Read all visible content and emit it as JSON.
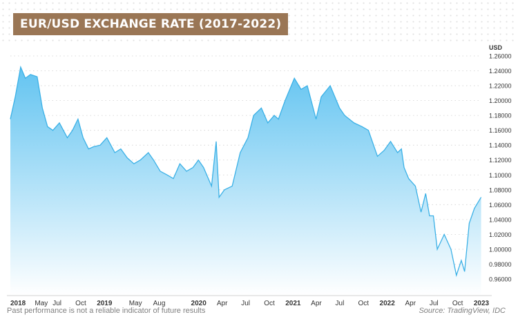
{
  "title": "EUR/USD EXCHANGE RATE (2017-2022)",
  "footer": {
    "disclaimer": "Past performance is not a reliable indicator of future results",
    "source": "Source: TradingView, IDC"
  },
  "colors": {
    "title_bg": "#9a7655",
    "line": "#3ab0e6",
    "fill_top": "#5bc1f0",
    "fill_bottom": "#ffffff",
    "grid": "#cfcfcf"
  },
  "chart_data": {
    "type": "area",
    "title": "EUR/USD EXCHANGE RATE (2017-2022)",
    "ylabel": "USD",
    "ylim": [
      0.95,
      1.27
    ],
    "y_ticks": [
      "1.26000",
      "1.24000",
      "1.22000",
      "1.20000",
      "1.18000",
      "1.16000",
      "1.14000",
      "1.12000",
      "1.10000",
      "1.08000",
      "1.06000",
      "1.04000",
      "1.02000",
      "1.00000",
      "0.98000",
      "0.96000"
    ],
    "x_ticks": [
      "2018",
      "May",
      "Jul",
      "Oct",
      "2019",
      "May",
      "Aug",
      "2020",
      "Apr",
      "Jul",
      "Oct",
      "2021",
      "Apr",
      "Jul",
      "Oct",
      "2022",
      "Apr",
      "Jul",
      "Oct",
      "2023"
    ],
    "x_tick_dates": [
      "2018-01-01",
      "2018-05-01",
      "2018-07-01",
      "2018-10-01",
      "2019-01-01",
      "2019-05-01",
      "2019-08-01",
      "2020-01-01",
      "2020-04-01",
      "2020-07-01",
      "2020-10-01",
      "2021-01-01",
      "2021-04-01",
      "2021-07-01",
      "2021-10-01",
      "2022-01-01",
      "2022-04-01",
      "2022-07-01",
      "2022-10-01",
      "2023-01-01"
    ],
    "grid": true,
    "series": [
      {
        "x": [
          "2018-01-01",
          "2018-01-20",
          "2018-02-10",
          "2018-02-28",
          "2018-03-20",
          "2018-04-15",
          "2018-05-05",
          "2018-05-25",
          "2018-06-15",
          "2018-07-10",
          "2018-08-10",
          "2018-08-30",
          "2018-09-20",
          "2018-10-10",
          "2018-10-31",
          "2018-11-20",
          "2018-12-15",
          "2019-01-10",
          "2019-02-10",
          "2019-03-05",
          "2019-03-30",
          "2019-04-25",
          "2019-05-20",
          "2019-06-20",
          "2019-07-10",
          "2019-08-05",
          "2019-09-01",
          "2019-09-25",
          "2019-10-20",
          "2019-11-15",
          "2019-12-10",
          "2019-12-31",
          "2020-01-20",
          "2020-02-20",
          "2020-03-09",
          "2020-03-20",
          "2020-04-10",
          "2020-05-10",
          "2020-06-10",
          "2020-07-10",
          "2020-08-01",
          "2020-08-31",
          "2020-09-25",
          "2020-10-20",
          "2020-11-05",
          "2020-12-01",
          "2021-01-06",
          "2021-02-01",
          "2021-02-25",
          "2021-03-31",
          "2021-04-20",
          "2021-05-25",
          "2021-06-30",
          "2021-07-20",
          "2021-08-25",
          "2021-09-25",
          "2021-10-20",
          "2021-11-24",
          "2021-12-20",
          "2022-01-14",
          "2022-02-10",
          "2022-02-25",
          "2022-03-07",
          "2022-03-25",
          "2022-04-20",
          "2022-05-12",
          "2022-05-30",
          "2022-06-14",
          "2022-06-29",
          "2022-07-14",
          "2022-08-10",
          "2022-09-05",
          "2022-09-26",
          "2022-10-15",
          "2022-10-28",
          "2022-11-15",
          "2022-12-05",
          "2022-12-31"
        ],
        "y": [
          1.175,
          1.205,
          1.245,
          1.23,
          1.235,
          1.232,
          1.19,
          1.165,
          1.16,
          1.17,
          1.15,
          1.16,
          1.175,
          1.15,
          1.135,
          1.138,
          1.14,
          1.15,
          1.13,
          1.135,
          1.123,
          1.115,
          1.12,
          1.13,
          1.12,
          1.105,
          1.1,
          1.095,
          1.115,
          1.105,
          1.11,
          1.12,
          1.11,
          1.085,
          1.145,
          1.07,
          1.08,
          1.085,
          1.13,
          1.15,
          1.18,
          1.19,
          1.17,
          1.18,
          1.175,
          1.2,
          1.23,
          1.215,
          1.22,
          1.175,
          1.205,
          1.22,
          1.19,
          1.18,
          1.17,
          1.165,
          1.16,
          1.125,
          1.133,
          1.145,
          1.13,
          1.135,
          1.11,
          1.095,
          1.085,
          1.05,
          1.075,
          1.045,
          1.045,
          1.0,
          1.02,
          1.0,
          0.965,
          0.985,
          0.97,
          1.035,
          1.055,
          1.07
        ]
      }
    ]
  }
}
